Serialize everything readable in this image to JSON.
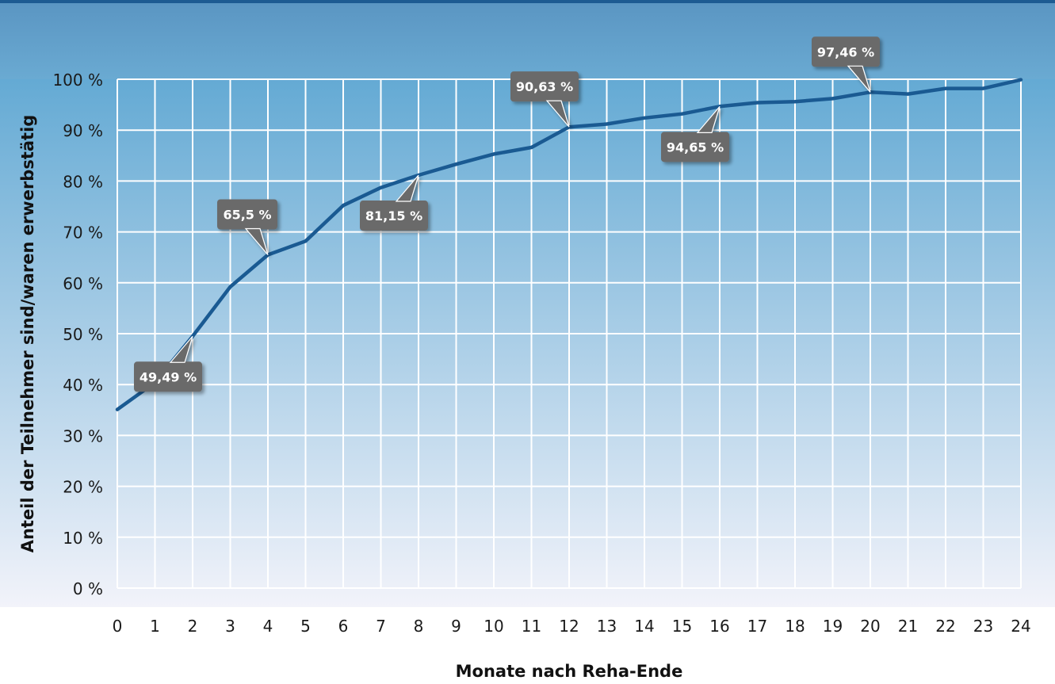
{
  "colors": {
    "band_top": "#5a95c2",
    "band_bottom": "#6aaad2",
    "plot_top": "#64aad4",
    "plot_bottom": "#f2f3fa",
    "top_rule": "#1d5b92",
    "grid": "#ffffff",
    "line": "#1a5a92",
    "callout_fill": "#6b6b6b",
    "callout_text": "#ffffff"
  },
  "chart_data": {
    "type": "line",
    "title": "",
    "xlabel": "Monate nach Reha-Ende",
    "ylabel": "Anteil der Teilnehmer sind/waren erwerbstätig",
    "x": [
      0,
      1,
      2,
      3,
      4,
      5,
      6,
      7,
      8,
      9,
      10,
      11,
      12,
      13,
      14,
      15,
      16,
      17,
      18,
      19,
      20,
      21,
      22,
      23,
      24
    ],
    "x_tick_labels": [
      "0",
      "1",
      "2",
      "3",
      "4",
      "5",
      "6",
      "7",
      "8",
      "9",
      "10",
      "11",
      "12",
      "13",
      "14",
      "15",
      "16",
      "17",
      "18",
      "19",
      "20",
      "21",
      "22",
      "23",
      "24"
    ],
    "y_ticks": [
      0,
      10,
      20,
      30,
      40,
      50,
      60,
      70,
      80,
      90,
      100
    ],
    "y_tick_labels": [
      "0 %",
      "10 %",
      "20 %",
      "30 %",
      "40 %",
      "50 %",
      "60 %",
      "70 %",
      "80 %",
      "90 %",
      "100 %"
    ],
    "ylim": [
      0,
      100
    ],
    "xlim": [
      0,
      24
    ],
    "grid": true,
    "series": [
      {
        "values": [
          35.1,
          40.4,
          49.49,
          59.2,
          65.5,
          68.2,
          75.2,
          78.7,
          81.15,
          83.3,
          85.3,
          86.6,
          90.63,
          91.2,
          92.4,
          93.2,
          94.65,
          95.4,
          95.6,
          96.2,
          97.46,
          97.1,
          98.2,
          98.2,
          99.9
        ]
      }
    ],
    "annotations": [
      {
        "x": 2,
        "y": 49.49,
        "text": "49,49 %"
      },
      {
        "x": 4,
        "y": 65.5,
        "text": "65,5 %"
      },
      {
        "x": 8,
        "y": 81.15,
        "text": "81,15 %"
      },
      {
        "x": 12,
        "y": 90.63,
        "text": "90,63 %"
      },
      {
        "x": 16,
        "y": 94.65,
        "text": "94,65 %"
      },
      {
        "x": 20,
        "y": 97.46,
        "text": "97,46 %"
      }
    ]
  }
}
